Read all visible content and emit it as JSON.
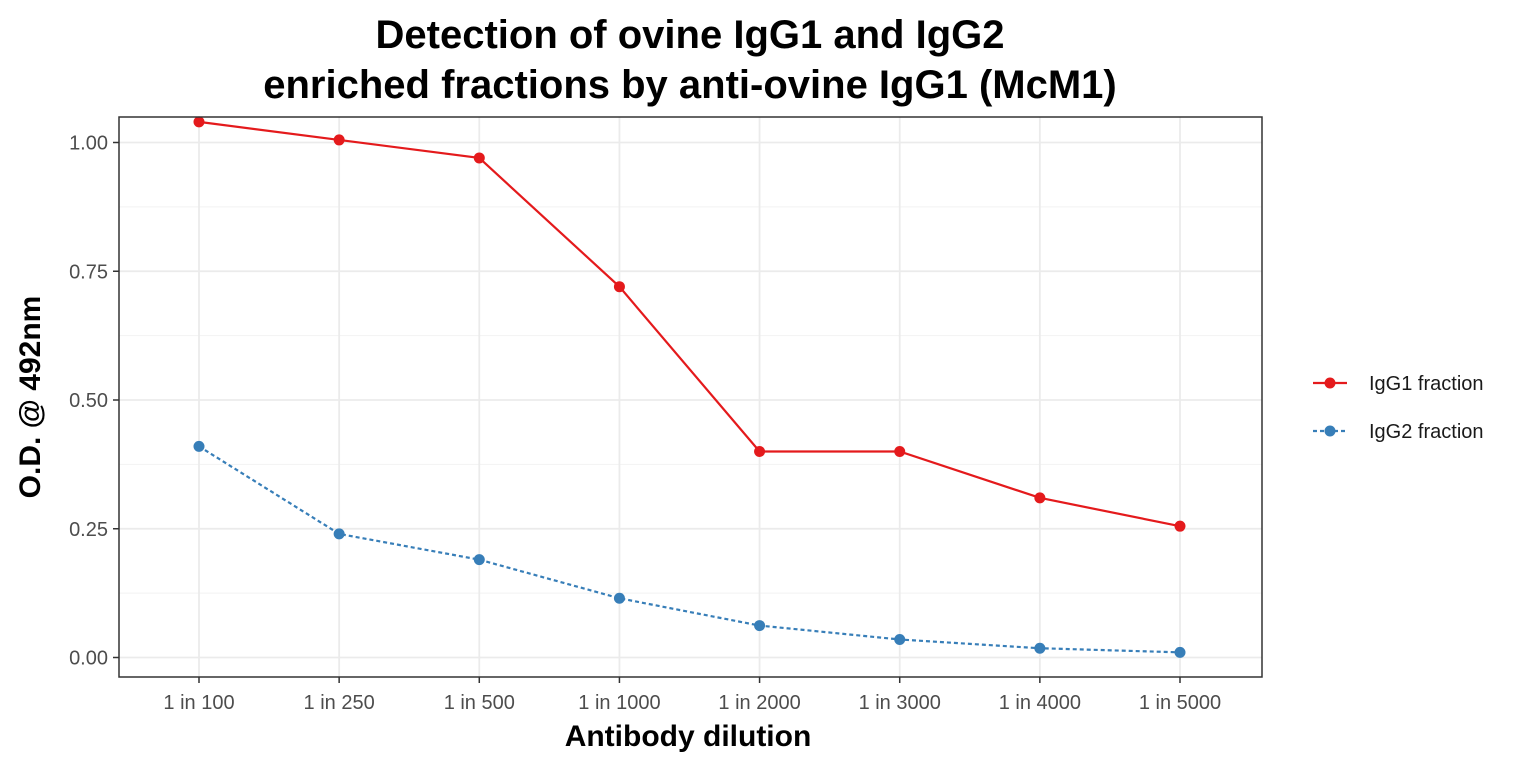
{
  "chart_data": {
    "type": "line",
    "title": [
      "Detection of ovine IgG1 and IgG2",
      "enriched fractions by anti-ovine IgG1 (McM1)"
    ],
    "xlabel": "Antibody dilution",
    "ylabel": "O.D. @ 492nm",
    "categories": [
      "1 in 100",
      "1 in 250",
      "1 in 500",
      "1 in 1000",
      "1 in 2000",
      "1 in 3000",
      "1 in 4000",
      "1 in 5000"
    ],
    "ylim": [
      -0.04,
      1.09
    ],
    "yticks": [
      0.0,
      0.25,
      0.5,
      0.75,
      1.0
    ],
    "ytick_labels": [
      "0.00",
      "0.25",
      "0.50",
      "0.75",
      "1.00"
    ],
    "grid": true,
    "legend_position": "right",
    "series": [
      {
        "name": "IgG1 fraction",
        "color": "#e41a1c",
        "line_style": "solid",
        "values": [
          1.04,
          1.005,
          0.97,
          0.72,
          0.4,
          0.4,
          0.31,
          0.255
        ]
      },
      {
        "name": "IgG2 fraction",
        "color": "#377eb8",
        "line_style": "dashed",
        "values": [
          0.41,
          0.24,
          0.19,
          0.115,
          0.062,
          0.035,
          0.018,
          0.01
        ]
      }
    ]
  }
}
